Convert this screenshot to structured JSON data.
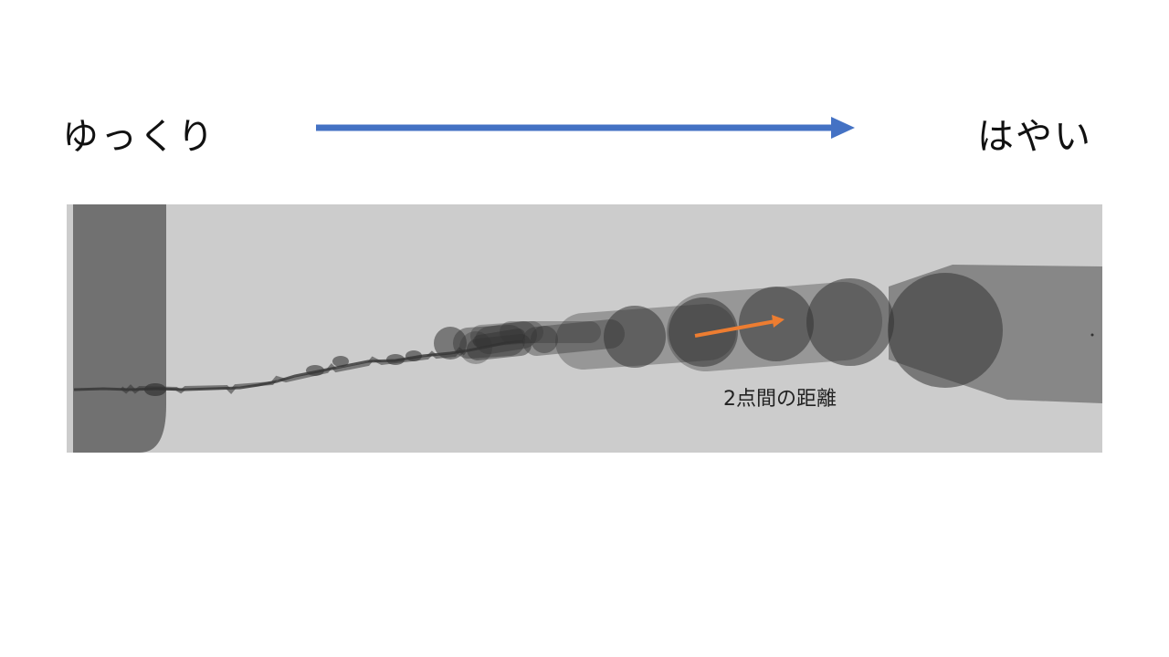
{
  "labels": {
    "slow": "ゆっくり",
    "fast": "はやい",
    "distance": "2点間の距離"
  },
  "colors": {
    "speed_arrow": "#4472c4",
    "distance_arrow": "#ed7d31",
    "panel_background": "#cccccc",
    "stroke_fill": "#333333"
  },
  "icons": {
    "speed_direction": "arrow-right-icon",
    "distance_vector": "arrow-right-icon"
  }
}
